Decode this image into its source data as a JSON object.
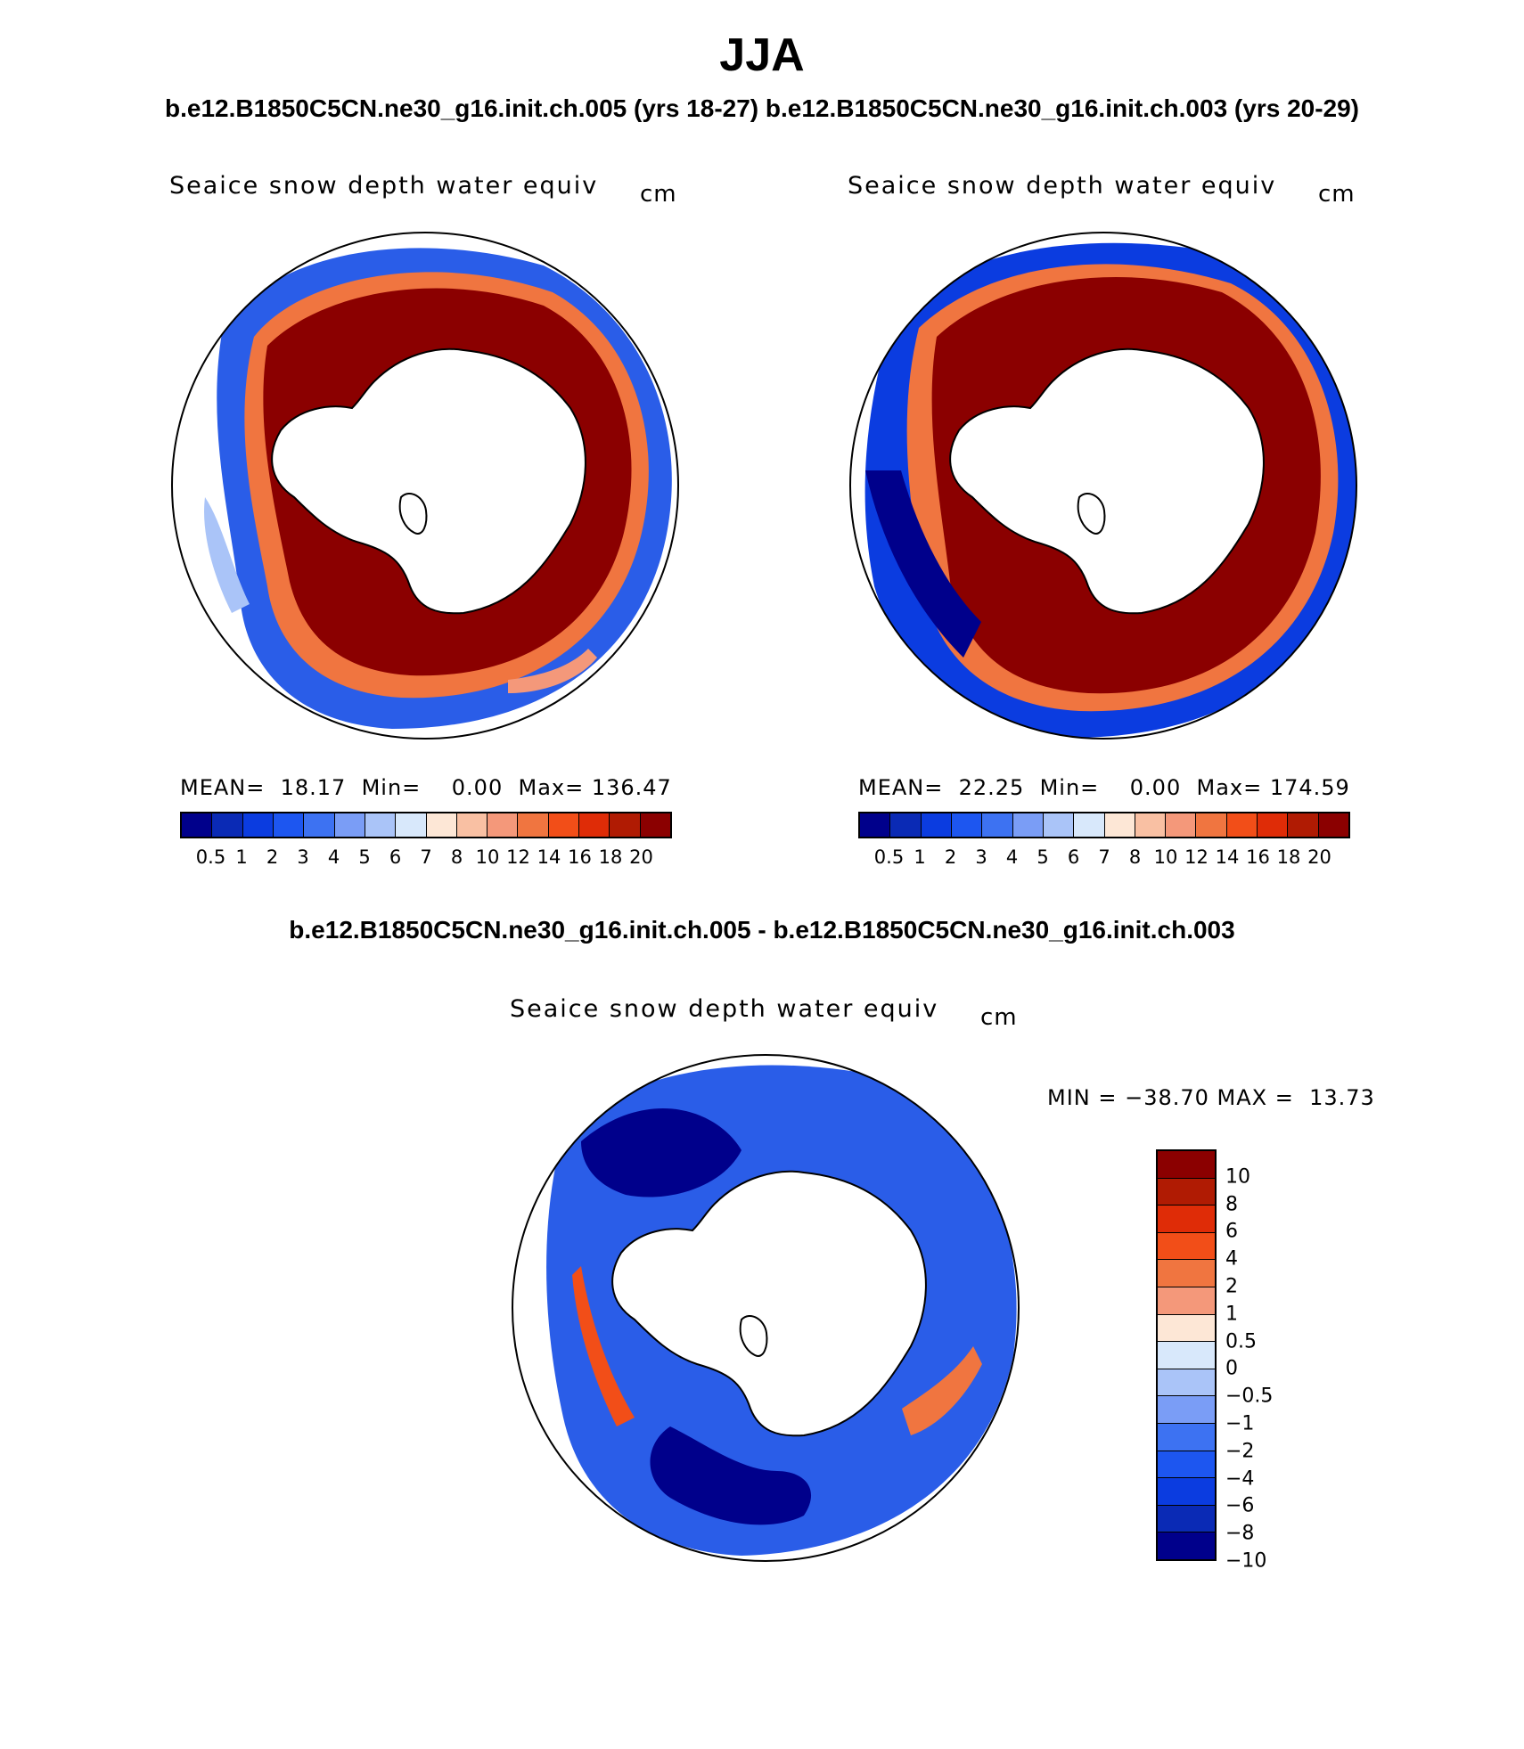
{
  "title": "JJA",
  "subtitle_top": "b.e12.B1850C5CN.ne30_g16.init.ch.005 (yrs 18-27)  b.e12.B1850C5CN.ne30_g16.init.ch.003 (yrs 20-29)",
  "subtitle_diff": "b.e12.B1850C5CN.ne30_g16.init.ch.005 - b.e12.B1850C5CN.ne30_g16.init.ch.003",
  "colors": {
    "abs": [
      "#00008b",
      "#0a2ab5",
      "#0b3ce0",
      "#1d56f0",
      "#3d72f2",
      "#7a9df6",
      "#aac4f8",
      "#d8e8fb",
      "#fde7d6",
      "#f9c0a3",
      "#f4987a",
      "#f07540",
      "#f24e18",
      "#df2c07",
      "#b01b03",
      "#8b0000"
    ],
    "diff": [
      "#8b0000",
      "#b01b03",
      "#df2c07",
      "#f24e18",
      "#f07540",
      "#f4987a",
      "#fde7d6",
      "#d8e8fb",
      "#aac4f8",
      "#7a9df6",
      "#3d72f2",
      "#1d56f0",
      "#0b3ce0",
      "#0a2ab5",
      "#00008b"
    ]
  },
  "panels": {
    "left": {
      "title": "Seaice snow depth water equiv",
      "units": "cm",
      "stats": "MEAN=  18.17  Min=    0.00  Max= 136.47"
    },
    "right": {
      "title": "Seaice snow depth water equiv",
      "units": "cm",
      "stats": "MEAN=  22.25  Min=    0.00  Max= 174.59"
    },
    "diff": {
      "title": "Seaice snow depth water equiv",
      "units": "cm",
      "stats": "MIN = −38.70 MAX =  13.73"
    }
  },
  "chart_data": [
    {
      "type": "heatmap",
      "projection": "south polar stereographic",
      "title": "Seaice snow depth water equiv",
      "units": "cm",
      "case": "b.e12.B1850C5CN.ne30_g16.init.ch.005 (yrs 18-27)",
      "season": "JJA",
      "mean": 18.17,
      "min": 0.0,
      "max": 136.47,
      "levels": [
        "0.5",
        "1",
        "2",
        "3",
        "4",
        "5",
        "6",
        "7",
        "8",
        "10",
        "12",
        "14",
        "16",
        "18",
        "20"
      ]
    },
    {
      "type": "heatmap",
      "projection": "south polar stereographic",
      "title": "Seaice snow depth water equiv",
      "units": "cm",
      "case": "b.e12.B1850C5CN.ne30_g16.init.ch.003 (yrs 20-29)",
      "season": "JJA",
      "mean": 22.25,
      "min": 0.0,
      "max": 174.59,
      "levels": [
        "0.5",
        "1",
        "2",
        "3",
        "4",
        "5",
        "6",
        "7",
        "8",
        "10",
        "12",
        "14",
        "16",
        "18",
        "20"
      ]
    },
    {
      "type": "heatmap",
      "projection": "south polar stereographic",
      "title": "Seaice snow depth water equiv",
      "units": "cm",
      "case": "b.e12.B1850C5CN.ne30_g16.init.ch.005 - b.e12.B1850C5CN.ne30_g16.init.ch.003",
      "season": "JJA",
      "min": -38.7,
      "max": 13.73,
      "levels": [
        "10",
        "8",
        "6",
        "4",
        "2",
        "1",
        "0.5",
        "0",
        "−0.5",
        "−1",
        "−2",
        "−4",
        "−6",
        "−8",
        "−10"
      ]
    }
  ]
}
